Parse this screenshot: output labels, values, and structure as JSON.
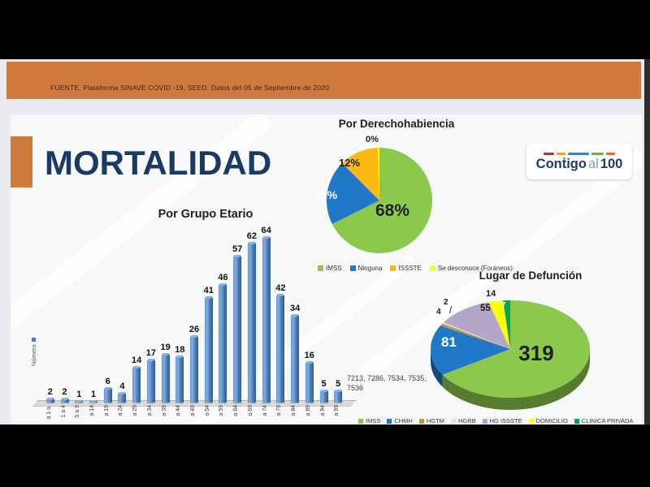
{
  "source_bar": {
    "text": "FUENTE. Plataforma SINAVE COVID -19, SEED. Datos del 05 de Septiembre de 2020"
  },
  "page_title": "MORTALIDAD",
  "logo": {
    "part1": "Contigo",
    "part2": "al",
    "part3": "100"
  },
  "footnote": "7213, 7286, 7534, 7535, 7536",
  "colors": {
    "accent_orange": "#cf7a3e",
    "title_navy": "#1b3a63",
    "bar_blue": "#4a7ebb"
  },
  "chart_data": [
    {
      "id": "age_group_bar",
      "type": "bar",
      "title": "Por Grupo Etario",
      "series_label": "Número",
      "categories": [
        "a 1 a.",
        "1 a 4",
        "5 a 9",
        "a 14",
        "a 19",
        "a 24",
        "a 29",
        "a 34",
        "a 39",
        "a 44",
        "a 49",
        "a 54",
        "a 59",
        "a 64",
        "a 69",
        "a 74",
        "a 79",
        "a 84",
        "a 89",
        "a 94",
        "a 99"
      ],
      "values": [
        2,
        2,
        1,
        1,
        6,
        4,
        14,
        17,
        19,
        18,
        26,
        41,
        46,
        57,
        62,
        64,
        42,
        34,
        16,
        5,
        5
      ],
      "xlabel": "",
      "ylabel": "Número",
      "grid": false,
      "bar_color": "#4a7ebb"
    },
    {
      "id": "derechohabiencia_pie",
      "type": "pie",
      "title": "Por Derechohabiencia",
      "legend_position": "bottom",
      "slices": [
        {
          "label": "IMSS",
          "pct": 68,
          "display": "68%",
          "color": "#8cc84b"
        },
        {
          "label": "Ninguna",
          "pct": 20,
          "display": "20%",
          "color": "#1f78c8"
        },
        {
          "label": "ISSSTE",
          "pct": 12,
          "display": "12%",
          "color": "#fdb913"
        },
        {
          "label": "Se desconoce (Foráneos)",
          "pct": 0,
          "display": "0%",
          "color": "#ffff00"
        }
      ]
    },
    {
      "id": "lugar_defuncion_pie",
      "type": "pie",
      "style": "3d",
      "title": "Lugar de Defunción",
      "legend_position": "bottom",
      "slices": [
        {
          "label": "IMSS",
          "value": 319,
          "display": "319",
          "color": "#8cc84b"
        },
        {
          "label": "CHMH",
          "value": 81,
          "display": "81",
          "color": "#1f78c8"
        },
        {
          "label": "HGTM",
          "value": 4,
          "display": "4",
          "color": "#c49a3f"
        },
        {
          "label": "HGRB",
          "value": 2,
          "display": "2",
          "color": "#e3e3e3"
        },
        {
          "label": "HG ISSSTE",
          "value": 55,
          "display": "55",
          "color": "#b3a6c9"
        },
        {
          "label": "DOMICILIO",
          "value": 14,
          "display": "14",
          "color": "#ffff00"
        },
        {
          "label": "CLINICA PRIVADA",
          "value": 7,
          "display": "7",
          "color": "#00a650"
        }
      ]
    }
  ]
}
